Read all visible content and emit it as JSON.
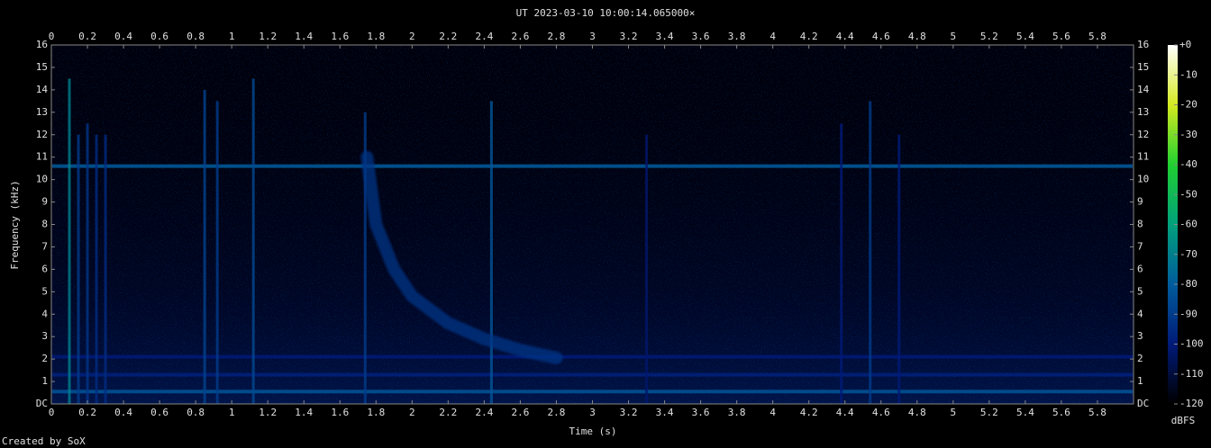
{
  "chart_data": {
    "type": "spectrogram",
    "title": "UT 2023-03-10 10:00:14.065000×",
    "xlabel": "Time (s)",
    "ylabel": "Frequency (kHz)",
    "footer": "Created by SoX",
    "xlim": [
      0,
      6
    ],
    "xticks": [
      0,
      0.2,
      0.4,
      0.6,
      0.8,
      1,
      1.2,
      1.4,
      1.6,
      1.8,
      2,
      2.2,
      2.4,
      2.6,
      2.8,
      3,
      3.2,
      3.4,
      3.6,
      3.8,
      4,
      4.2,
      4.4,
      4.6,
      4.8,
      5,
      5.2,
      5.4,
      5.6,
      5.8
    ],
    "ylim": [
      0,
      16
    ],
    "yticks": [
      {
        "value": 0,
        "label": "DC"
      },
      1,
      2,
      3,
      4,
      5,
      6,
      7,
      8,
      9,
      10,
      11,
      12,
      13,
      14,
      15,
      16
    ],
    "colorbar_label": "dBFS",
    "clim": [
      -120,
      0
    ],
    "cticks": [
      {
        "value": 0,
        "label": "+0"
      },
      -10,
      -20,
      -30,
      -40,
      -50,
      -60,
      -70,
      -80,
      -90,
      -100,
      -110,
      -120
    ],
    "colormap": [
      "#000000",
      "#001a78",
      "#005c9c",
      "#00a07c",
      "#20d030",
      "#d4ea20",
      "#ffffff"
    ],
    "hlines": {
      "freq": [
        10.6,
        0.55,
        1.3,
        2.1
      ],
      "dbfs": [
        -80,
        -82,
        -98,
        -100
      ]
    },
    "vlines": {
      "time": [
        0.1,
        0.15,
        0.2,
        0.25,
        0.3,
        0.85,
        0.92,
        1.12,
        1.74,
        2.44,
        3.3,
        4.38,
        4.54,
        4.7
      ],
      "top": [
        14.5,
        12,
        12.5,
        12,
        12,
        14,
        13.5,
        14.5,
        13,
        13.5,
        12,
        12.5,
        13.5,
        12
      ],
      "dbfs": [
        -70,
        -90,
        -92,
        -95,
        -95,
        -88,
        -90,
        -86,
        -90,
        -82,
        -102,
        -100,
        -90,
        -100
      ]
    },
    "whistler": {
      "time": [
        1.75,
        1.8,
        1.9,
        2.0,
        2.2,
        2.4,
        2.6,
        2.8
      ],
      "freq": [
        11,
        8,
        6,
        4.8,
        3.6,
        2.9,
        2.4,
        2.05
      ],
      "dbfs": -92
    }
  }
}
